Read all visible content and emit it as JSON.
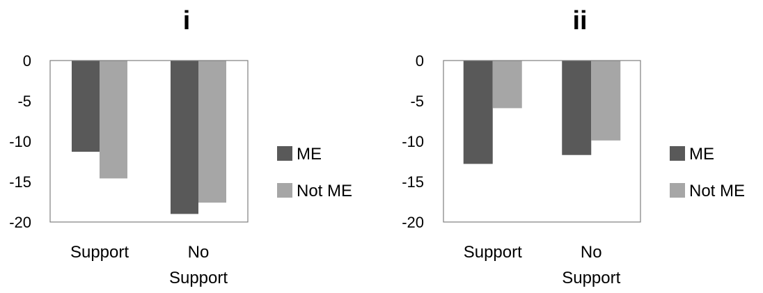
{
  "colors": {
    "ME": "#595959",
    "Not ME": "#a6a6a6",
    "axis": "#7f7f7f"
  },
  "chart_data": [
    {
      "type": "bar",
      "title": "i",
      "categories": [
        [
          "Support"
        ],
        [
          "No",
          "Support"
        ]
      ],
      "series": [
        {
          "name": "ME",
          "values": [
            -11.3,
            -19.0
          ]
        },
        {
          "name": "Not ME",
          "values": [
            -14.6,
            -17.6
          ]
        }
      ],
      "ylim": [
        -20,
        0
      ],
      "yticks": [
        0,
        -5,
        -10,
        -15,
        -20
      ],
      "grid": false,
      "legend": "right"
    },
    {
      "type": "bar",
      "title": "ii",
      "categories": [
        [
          "Support"
        ],
        [
          "No",
          "Support"
        ]
      ],
      "series": [
        {
          "name": "ME",
          "values": [
            -12.8,
            -11.7
          ]
        },
        {
          "name": "Not ME",
          "values": [
            -5.9,
            -9.9
          ]
        }
      ],
      "ylim": [
        -20,
        0
      ],
      "yticks": [
        0,
        -5,
        -10,
        -15,
        -20
      ],
      "grid": false,
      "legend": "right"
    }
  ]
}
